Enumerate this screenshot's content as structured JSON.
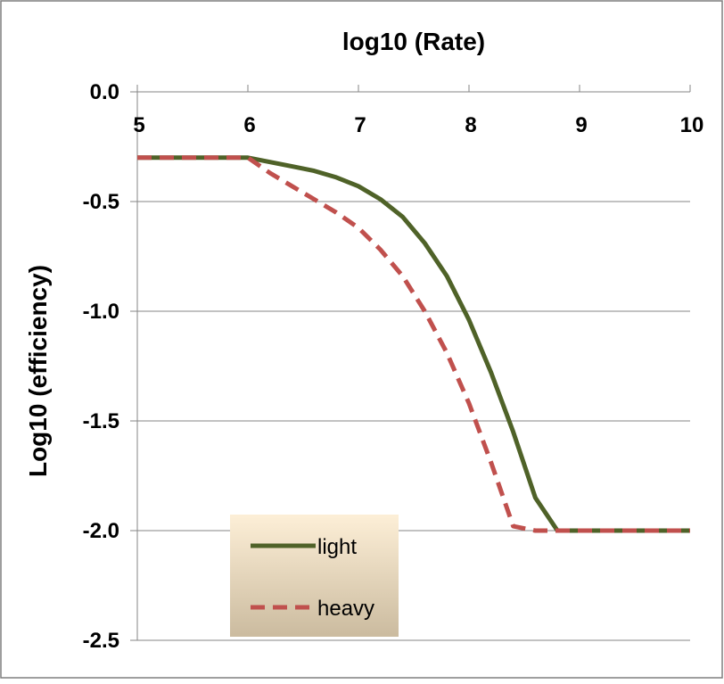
{
  "colors": {
    "light": "#4f6228",
    "heavy": "#c0504d",
    "grid": "#868686",
    "frame": "#7f7f7f",
    "legend_top": "#fdefd7",
    "legend_bottom": "#cbbb9f"
  },
  "chart_data": {
    "type": "line",
    "title": "log10 (Rate)",
    "xlabel": "",
    "ylabel": "Log10 (efficiency)",
    "xlim": [
      5,
      10
    ],
    "ylim": [
      -2.5,
      0.0
    ],
    "x_ticks": [
      "5",
      "6",
      "7",
      "8",
      "9",
      "10"
    ],
    "y_ticks": [
      "0.0",
      "-0.5",
      "-1.0",
      "-1.5",
      "-2.0",
      "-2.5"
    ],
    "x_axis_position": "top",
    "grid": "horizontal",
    "legend": "bottom-left",
    "series": [
      {
        "name": "light",
        "style": "solid",
        "x": [
          5,
          5.2,
          5.4,
          5.6,
          5.8,
          6.0,
          6.2,
          6.4,
          6.6,
          6.8,
          7.0,
          7.2,
          7.4,
          7.6,
          7.8,
          8.0,
          8.2,
          8.4,
          8.6,
          8.8,
          9.0,
          9.2,
          9.4,
          9.6,
          9.8,
          10.0
        ],
        "values": [
          -0.3,
          -0.3,
          -0.3,
          -0.3,
          -0.3,
          -0.3,
          -0.32,
          -0.34,
          -0.36,
          -0.39,
          -0.43,
          -0.49,
          -0.57,
          -0.69,
          -0.84,
          -1.04,
          -1.28,
          -1.55,
          -1.85,
          -2.0,
          -2.0,
          -2.0,
          -2.0,
          -2.0,
          -2.0,
          -2.0
        ]
      },
      {
        "name": "heavy",
        "style": "dashed",
        "x": [
          5,
          5.2,
          5.4,
          5.6,
          5.8,
          6.0,
          6.2,
          6.4,
          6.6,
          6.8,
          7.0,
          7.2,
          7.4,
          7.6,
          7.8,
          8.0,
          8.2,
          8.4,
          8.6,
          8.8,
          9.0,
          9.2,
          9.4,
          9.6,
          9.8,
          10.0
        ],
        "values": [
          -0.3,
          -0.3,
          -0.3,
          -0.3,
          -0.3,
          -0.3,
          -0.37,
          -0.43,
          -0.49,
          -0.55,
          -0.62,
          -0.72,
          -0.84,
          -1.0,
          -1.19,
          -1.42,
          -1.69,
          -1.98,
          -2.0,
          -2.0,
          -2.0,
          -2.0,
          -2.0,
          -2.0,
          -2.0,
          -2.0
        ]
      }
    ]
  }
}
